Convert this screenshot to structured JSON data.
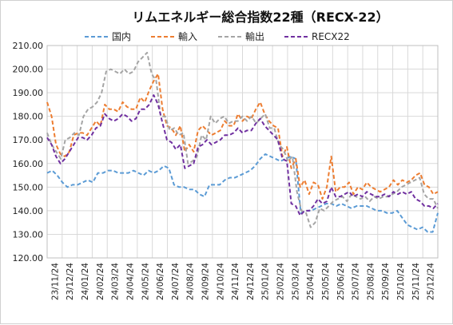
{
  "chart_data": {
    "type": "line",
    "title": "リムエネルギー総合指数22種（RECX-22）",
    "ylim": [
      120,
      210
    ],
    "yticks": [
      "120.00",
      "130.00",
      "140.00",
      "150.00",
      "160.00",
      "170.00",
      "180.00",
      "190.00",
      "200.00",
      "210.00"
    ],
    "xticks": [
      "23/11/24",
      "23/12/24",
      "24/01/24",
      "24/02/24",
      "24/03/24",
      "24/04/24",
      "24/05/24",
      "24/06/24",
      "24/07/24",
      "24/08/24",
      "24/09/24",
      "24/10/24",
      "24/11/24",
      "24/12/24",
      "25/01/24",
      "25/02/24",
      "25/03/24",
      "25/04/24",
      "25/05/24",
      "25/06/24",
      "25/07/24",
      "25/08/24",
      "25/09/24",
      "25/10/24",
      "25/11/24",
      "25/12/24"
    ],
    "grid": true,
    "legend_position": "top",
    "series": [
      {
        "name": "国内",
        "color": "#5b9bd5",
        "values": [
          156,
          157,
          155,
          152,
          150,
          151,
          151,
          152,
          153,
          152,
          156,
          156,
          157,
          157,
          156,
          156,
          156,
          157,
          156,
          155,
          157,
          156,
          157,
          159,
          158,
          151,
          150,
          150,
          149,
          149,
          147,
          146,
          151,
          151,
          151,
          153,
          154,
          154,
          155,
          156,
          157,
          159,
          162,
          164,
          163,
          162,
          161,
          162,
          163,
          162,
          139,
          140,
          140,
          141,
          142,
          143,
          143,
          142,
          143,
          142,
          141,
          142,
          142,
          142,
          141,
          140,
          140,
          139,
          139,
          140,
          137,
          134,
          133,
          132,
          133,
          131,
          131,
          139
        ]
      },
      {
        "name": "輸入",
        "color": "#ed7d31",
        "values": [
          186,
          180,
          168,
          164,
          163,
          165,
          172,
          173,
          173,
          172,
          175,
          178,
          176,
          185,
          183,
          183,
          182,
          186,
          184,
          183,
          183,
          188,
          186,
          191,
          195,
          198,
          183,
          176,
          175,
          172,
          176,
          165,
          168,
          165,
          174,
          176,
          174,
          172,
          173,
          174,
          178,
          176,
          176,
          181,
          178,
          180,
          179,
          183,
          186,
          181,
          178,
          176,
          175,
          163,
          167,
          158,
          162,
          150,
          153,
          147,
          152,
          151,
          145,
          150,
          163,
          148,
          150,
          150,
          152,
          147,
          150,
          149,
          152,
          150,
          149,
          148,
          149,
          150,
          153,
          151,
          153,
          152,
          153,
          155,
          156,
          151,
          150,
          147,
          148
        ]
      },
      {
        "name": "輸出",
        "color": "#a5a5a5",
        "values": [
          173,
          168,
          165,
          162,
          170,
          171,
          173,
          172,
          180,
          183,
          184,
          186,
          190,
          199,
          200,
          199,
          198,
          200,
          198,
          199,
          203,
          205,
          207,
          198,
          195,
          180,
          180,
          174,
          175,
          172,
          173,
          160,
          161,
          163,
          172,
          170,
          180,
          177,
          179,
          180,
          177,
          178,
          178,
          180,
          178,
          180,
          177,
          179,
          181,
          175,
          175,
          168,
          166,
          161,
          163,
          148,
          140,
          139,
          133,
          135,
          141,
          140,
          142,
          144,
          145,
          146,
          144,
          147,
          146,
          145,
          146,
          144,
          146,
          145,
          146,
          146,
          147,
          148,
          150,
          151,
          152,
          153,
          154,
          147,
          145,
          145,
          141
        ]
      },
      {
        "name": "RECX22",
        "color": "#7030a0",
        "values": [
          171,
          168,
          163,
          160,
          162,
          165,
          168,
          171,
          171,
          170,
          172,
          175,
          176,
          181,
          179,
          178,
          179,
          181,
          180,
          178,
          179,
          183,
          183,
          185,
          189,
          185,
          177,
          170,
          169,
          166,
          168,
          158,
          159,
          160,
          167,
          168,
          170,
          168,
          169,
          170,
          172,
          172,
          173,
          175,
          173,
          174,
          174,
          177,
          179,
          176,
          174,
          172,
          170,
          162,
          161,
          143,
          142,
          138,
          140,
          140,
          142,
          145,
          143,
          144,
          150,
          146,
          146,
          147,
          148,
          146,
          147,
          146,
          148,
          147,
          146,
          146,
          147,
          146,
          148,
          147,
          148,
          147,
          148,
          145,
          144,
          142,
          142,
          141,
          143
        ]
      }
    ]
  }
}
